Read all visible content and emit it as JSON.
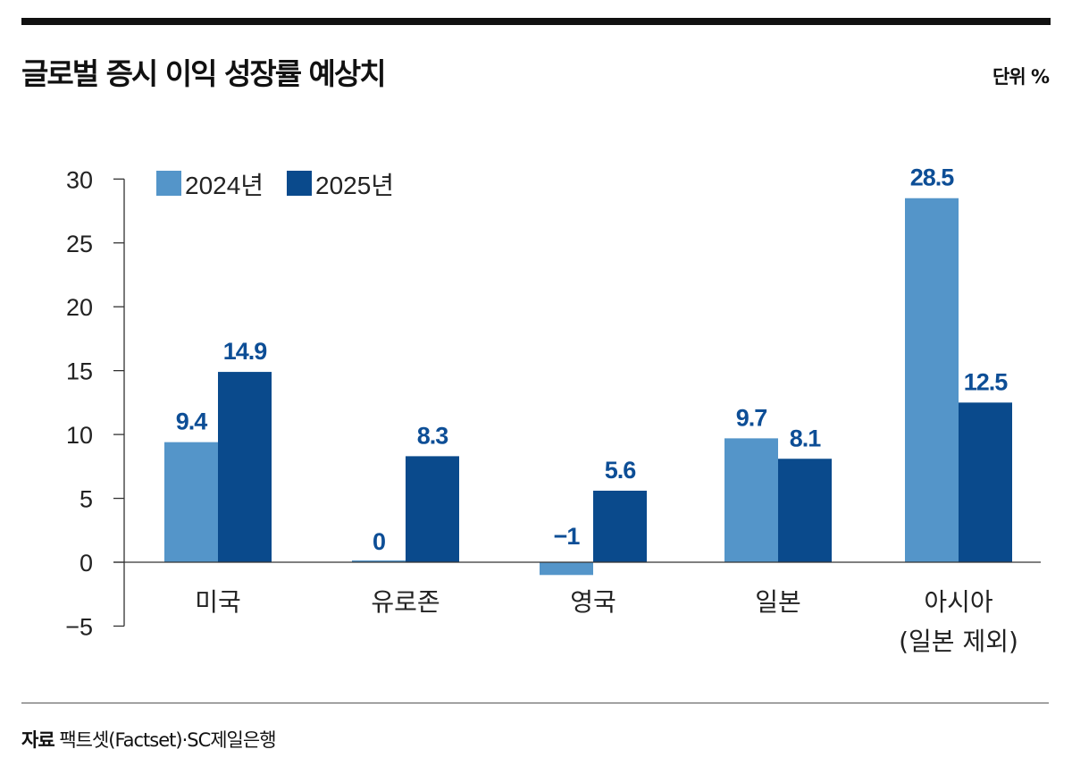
{
  "title": "글로벌 증시 이익 성장률 예상치",
  "unit": "단위 %",
  "source_label": "자료",
  "source_text": "팩트셋(Factset)·SC제일은행",
  "colors": {
    "series_2024": "#5495c9",
    "series_2025": "#0a4a8c",
    "value_label": "#0d4e96"
  },
  "chart_data": {
    "type": "bar",
    "categories": [
      [
        "미국"
      ],
      [
        "유로존"
      ],
      [
        "영국"
      ],
      [
        "일본"
      ],
      [
        "아시아",
        "(일본 제외)"
      ]
    ],
    "series": [
      {
        "name": "2024년",
        "values": [
          9.4,
          0,
          -1,
          9.7,
          28.5
        ],
        "labels": [
          "9.4",
          "0",
          "−1",
          "9.7",
          "28.5"
        ]
      },
      {
        "name": "2025년",
        "values": [
          14.9,
          8.3,
          5.6,
          8.1,
          12.5
        ],
        "labels": [
          "14.9",
          "8.3",
          "5.6",
          "8.1",
          "12.5"
        ]
      }
    ],
    "yticks": [
      "30",
      "25",
      "20",
      "15",
      "10",
      "5",
      "0",
      "−5"
    ],
    "ytick_values": [
      30,
      25,
      20,
      15,
      10,
      5,
      0,
      -5
    ],
    "ylim": [
      -5,
      30
    ],
    "grid": false,
    "legend": "top-left"
  }
}
